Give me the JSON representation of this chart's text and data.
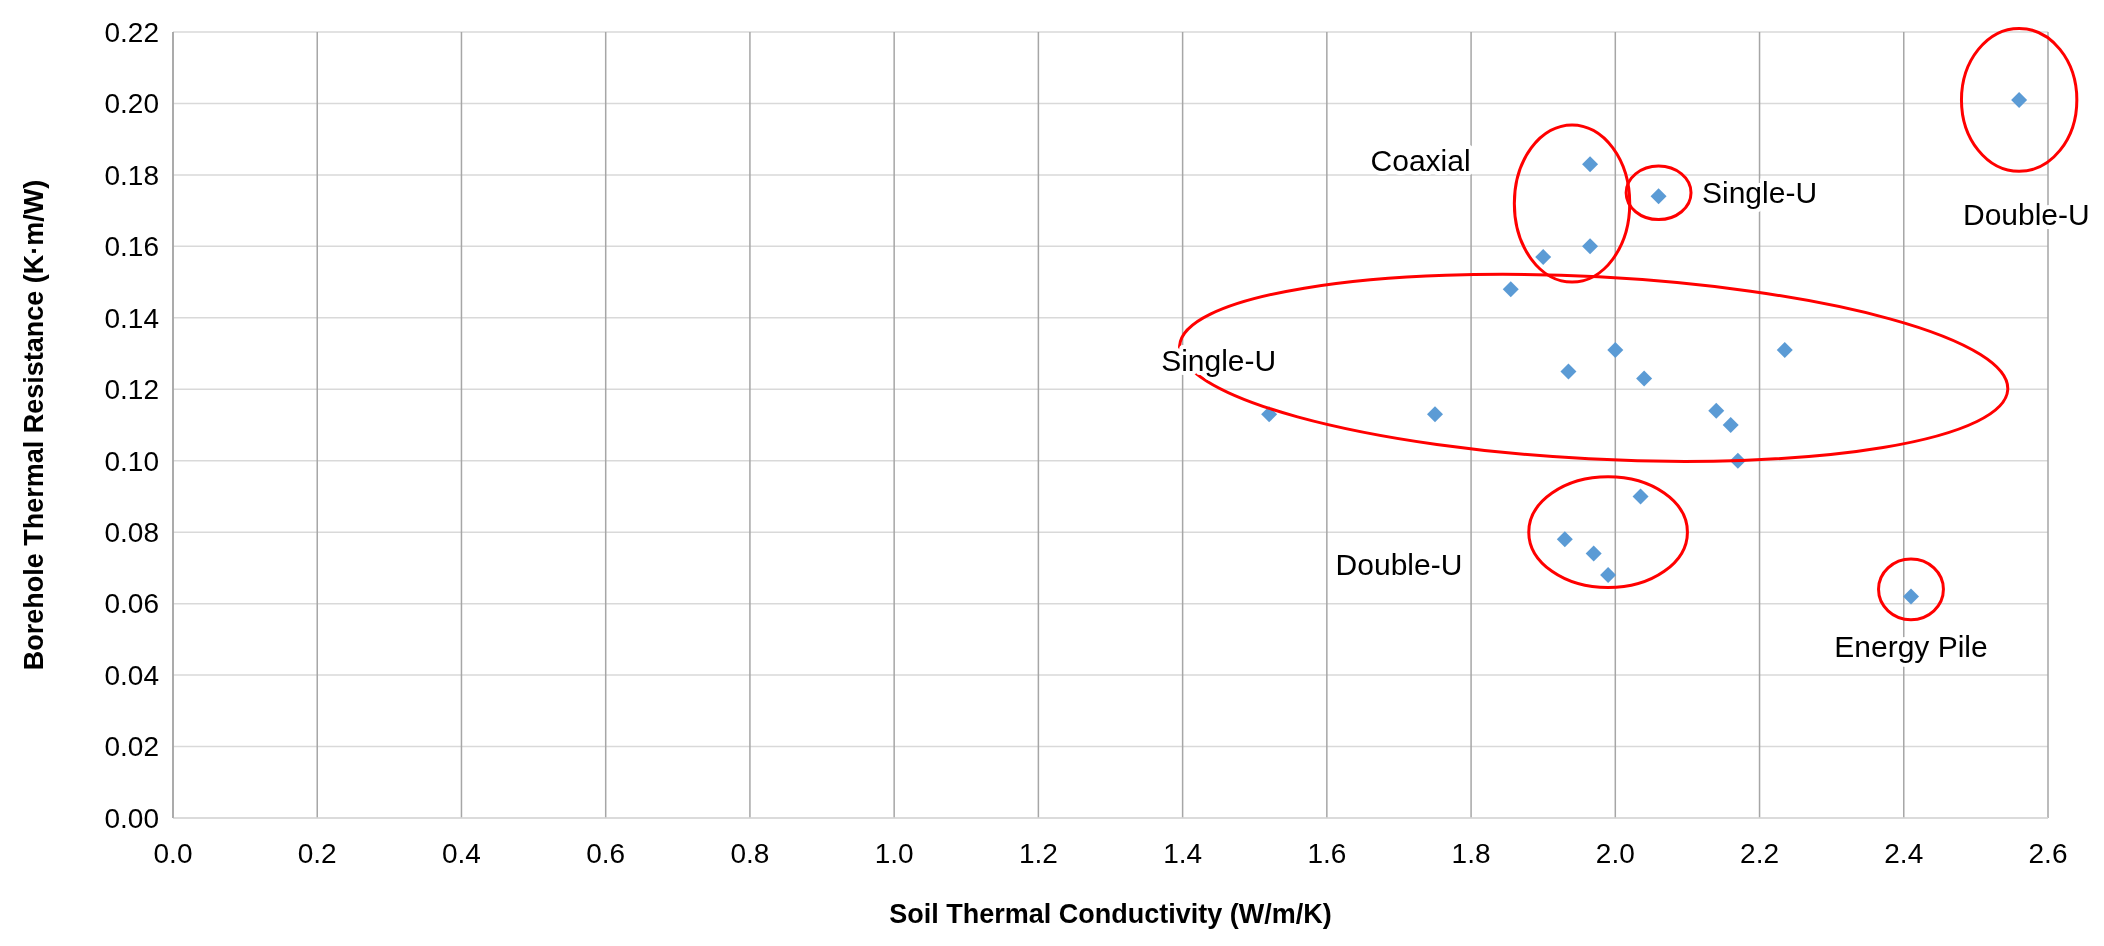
{
  "chart_data": {
    "type": "scatter",
    "xlabel": "Soil Thermal Conductivity  (W/m/K)",
    "ylabel": "Borehole  Thermal Resistance  (K·m/W)",
    "series": [
      {
        "color": "#5b9bd5",
        "x": [
          2.56,
          1.965,
          2.06,
          1.965,
          1.9,
          1.855,
          2.0,
          2.235,
          1.935,
          2.04,
          1.52,
          1.75,
          2.14,
          2.16,
          2.17,
          2.035,
          1.93,
          1.97,
          1.99,
          2.41
        ],
        "values": [
          0.201,
          0.183,
          0.174,
          0.16,
          0.157,
          0.148,
          0.131,
          0.131,
          0.125,
          0.123,
          0.113,
          0.113,
          0.114,
          0.11,
          0.1,
          0.09,
          0.078,
          0.074,
          0.068,
          0.062
        ]
      }
    ],
    "marker": "diamond",
    "grid": true,
    "xlim": [
      0,
      2.6
    ],
    "xticks": [
      {
        "value": 0,
        "label": "0.0"
      },
      {
        "value": 0.2,
        "label": "0.2"
      },
      {
        "value": 0.4,
        "label": "0.4"
      },
      {
        "value": 0.6,
        "label": "0.6"
      },
      {
        "value": 0.8,
        "label": "0.8"
      },
      {
        "value": 1,
        "label": "1.0"
      },
      {
        "value": 1.2,
        "label": "1.2"
      },
      {
        "value": 1.4,
        "label": "1.4"
      },
      {
        "value": 1.6,
        "label": "1.6"
      },
      {
        "value": 1.8,
        "label": "1.8"
      },
      {
        "value": 2,
        "label": "2.0"
      },
      {
        "value": 2.2,
        "label": "2.2"
      },
      {
        "value": 2.4,
        "label": "2.4"
      },
      {
        "value": 2.6,
        "label": "2.6"
      }
    ],
    "ylim": [
      0,
      0.22
    ],
    "yticks": [
      {
        "value": 0,
        "label": "0.00"
      },
      {
        "value": 0.02,
        "label": "0.02"
      },
      {
        "value": 0.04,
        "label": "0.04"
      },
      {
        "value": 0.06,
        "label": "0.06"
      },
      {
        "value": 0.08,
        "label": "0.08"
      },
      {
        "value": 0.1,
        "label": "0.10"
      },
      {
        "value": 0.12,
        "label": "0.12"
      },
      {
        "value": 0.14,
        "label": "0.14"
      },
      {
        "value": 0.16,
        "label": "0.16"
      },
      {
        "value": 0.18,
        "label": "0.18"
      },
      {
        "value": 0.2,
        "label": "0.20"
      },
      {
        "value": 0.22,
        "label": "0.22"
      }
    ],
    "annotations": [
      "Coaxial",
      "Single-U",
      "Double-U",
      "Single-U",
      "Double-U",
      "Energy Pile"
    ]
  }
}
